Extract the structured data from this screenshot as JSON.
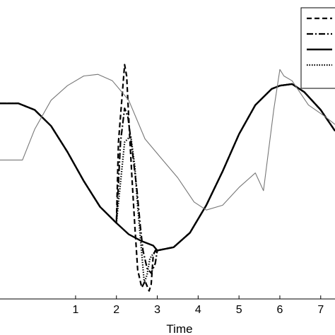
{
  "chart_data": {
    "type": "line",
    "title": "",
    "xlabel": "Time",
    "ylabel": "",
    "xlim": [
      -0.85,
      7.35
    ],
    "ylim": [
      -0.8,
      1.05
    ],
    "xticks": [
      1,
      2,
      3,
      4,
      5,
      6,
      7
    ],
    "grid": false,
    "legend_position": "top-right",
    "series": [
      {
        "style": "dashed",
        "color": "#000000",
        "x": [
          -0.85,
          -0.4,
          0,
          0.4,
          0.8,
          1.2,
          1.6,
          2.0,
          2.05,
          2.2,
          2.25,
          2.32,
          2.38,
          2.45,
          2.52,
          2.62,
          2.7,
          2.8,
          2.85,
          2.9,
          2.95,
          3.0,
          3.4,
          3.8,
          4.2,
          4.6,
          5.0,
          5.4,
          5.8,
          6.0,
          6.3,
          6.6,
          7.0,
          7.35
        ],
        "y": [
          0.41,
          0.41,
          0.37,
          0.27,
          0.11,
          -0.07,
          -0.23,
          -0.33,
          0.17,
          0.65,
          0.58,
          0.23,
          -0.05,
          -0.35,
          -0.62,
          -0.73,
          -0.69,
          -0.75,
          -0.71,
          -0.53,
          -0.5,
          -0.5,
          -0.48,
          -0.39,
          -0.22,
          -0.01,
          0.22,
          0.4,
          0.5,
          0.52,
          0.53,
          0.48,
          0.37,
          0.24
        ]
      },
      {
        "style": "dash-dot",
        "color": "#000000",
        "x": [
          -0.85,
          -0.4,
          0,
          0.4,
          0.8,
          1.2,
          1.6,
          2.0,
          2.1,
          2.2,
          2.28,
          2.35,
          2.42,
          2.5,
          2.58,
          2.65,
          2.75,
          2.85,
          2.95,
          3.0,
          3.4,
          3.8,
          4.2,
          4.6,
          5.0,
          5.4,
          5.8,
          6.0,
          6.3,
          6.6,
          7.0,
          7.35
        ],
        "y": [
          0.41,
          0.41,
          0.37,
          0.27,
          0.11,
          -0.07,
          -0.23,
          -0.33,
          0.17,
          0.38,
          0.33,
          0.19,
          0.05,
          -0.12,
          -0.34,
          -0.5,
          -0.61,
          -0.64,
          -0.58,
          -0.5,
          -0.48,
          -0.39,
          -0.22,
          -0.01,
          0.22,
          0.4,
          0.5,
          0.52,
          0.53,
          0.48,
          0.37,
          0.24
        ]
      },
      {
        "style": "solid",
        "color": "#000000",
        "x": [
          -0.85,
          -0.4,
          0,
          0.4,
          0.8,
          1.2,
          1.6,
          2.0,
          2.3,
          2.6,
          2.9,
          3.0,
          3.4,
          3.8,
          4.2,
          4.6,
          5.0,
          5.4,
          5.8,
          6.0,
          6.3,
          6.6,
          7.0,
          7.35
        ],
        "y": [
          0.41,
          0.41,
          0.37,
          0.27,
          0.11,
          -0.07,
          -0.23,
          -0.33,
          -0.4,
          -0.44,
          -0.47,
          -0.5,
          -0.48,
          -0.39,
          -0.22,
          -0.01,
          0.22,
          0.4,
          0.5,
          0.52,
          0.53,
          0.48,
          0.37,
          0.24
        ]
      },
      {
        "style": "dotted",
        "color": "#000000",
        "x": [
          -0.85,
          -0.4,
          0,
          0.4,
          0.8,
          1.2,
          1.6,
          2.0,
          2.2,
          2.35,
          2.45,
          2.52,
          2.6,
          2.68,
          2.75,
          2.82,
          2.9,
          3.0,
          3.4,
          3.8,
          4.2,
          4.6,
          5.0,
          5.4,
          5.8,
          6.0,
          6.3,
          6.6,
          7.0,
          7.35
        ],
        "y": [
          0.41,
          0.41,
          0.37,
          0.27,
          0.11,
          -0.07,
          -0.23,
          -0.33,
          0.17,
          0.21,
          0.02,
          -0.23,
          -0.46,
          -0.7,
          -0.65,
          -0.55,
          -0.52,
          -0.5,
          -0.48,
          -0.39,
          -0.22,
          -0.01,
          0.22,
          0.4,
          0.5,
          0.52,
          0.53,
          0.48,
          0.37,
          0.24
        ]
      },
      {
        "style": "thin-solid",
        "color": "#777777",
        "x": [
          -0.85,
          -0.3,
          0,
          0.4,
          0.8,
          1.2,
          1.55,
          1.9,
          2.3,
          2.7,
          3.1,
          3.5,
          3.9,
          4.2,
          4.6,
          5.0,
          5.4,
          5.6,
          5.7,
          5.85,
          6.0,
          6.1,
          6.3,
          6.7,
          7.1,
          7.35
        ],
        "y": [
          0.06,
          0.06,
          0.25,
          0.43,
          0.52,
          0.58,
          0.59,
          0.55,
          0.43,
          0.19,
          0.07,
          -0.05,
          -0.2,
          -0.25,
          -0.22,
          -0.11,
          -0.02,
          -0.13,
          0.07,
          0.37,
          0.62,
          0.58,
          0.55,
          0.4,
          0.33,
          0.28
        ]
      }
    ]
  }
}
